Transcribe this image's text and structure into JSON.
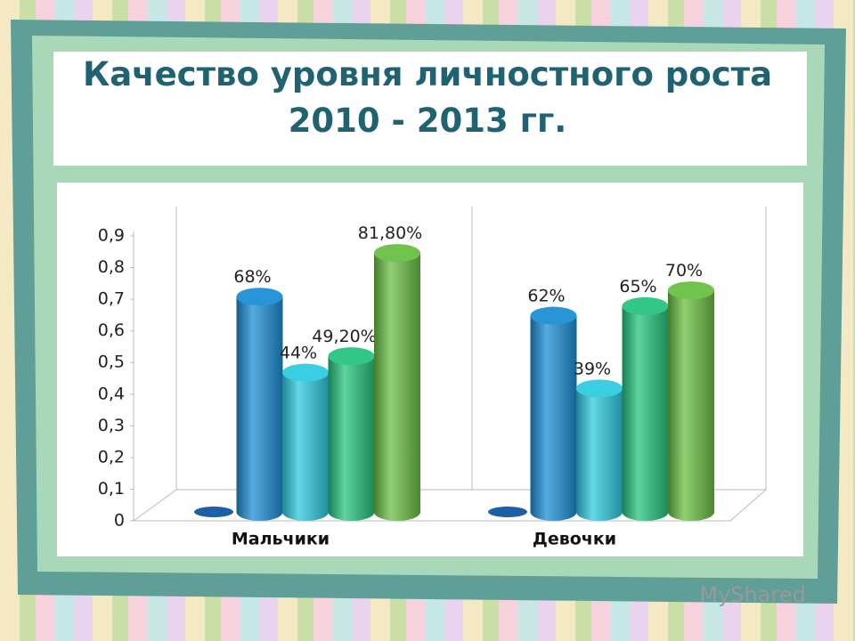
{
  "chart_data": {
    "type": "bar3d",
    "title_lines": [
      "Качество уровня личностного роста",
      "2010  - 2013 гг."
    ],
    "categories": [
      "Мальчики",
      "Девочки"
    ],
    "series": [
      {
        "color": "#1d5fa6",
        "values": [
          0,
          0
        ]
      },
      {
        "color": "#1e8fd6",
        "values": [
          0.68,
          0.62
        ],
        "value_labels": [
          "68%",
          "62%"
        ]
      },
      {
        "color": "#2fcbe0",
        "values": [
          0.44,
          0.39
        ],
        "value_labels": [
          "44%",
          "39%"
        ]
      },
      {
        "color": "#27c47e",
        "values": [
          0.492,
          0.65
        ],
        "value_labels": [
          "49,20%",
          "65%"
        ]
      },
      {
        "color": "#6bbf45",
        "values": [
          0.818,
          0.7
        ],
        "value_labels": [
          "81,80%",
          "70%"
        ]
      }
    ],
    "ylim": [
      0,
      0.9
    ],
    "yticks": [
      0,
      {
        "value": 0.1,
        "label": "0,1"
      },
      {
        "value": 0.2,
        "label": "0,2"
      },
      {
        "value": 0.3,
        "label": "0,3"
      },
      {
        "value": 0.4,
        "label": "0,4"
      },
      {
        "value": 0.5,
        "label": "0,5"
      },
      {
        "value": 0.6,
        "label": "0,6"
      },
      {
        "value": 0.7,
        "label": "0,7"
      },
      {
        "value": 0.8,
        "label": "0,8"
      },
      {
        "value": 0.9,
        "label": "0,9"
      }
    ],
    "grid": false,
    "watermark": "MyShared"
  }
}
